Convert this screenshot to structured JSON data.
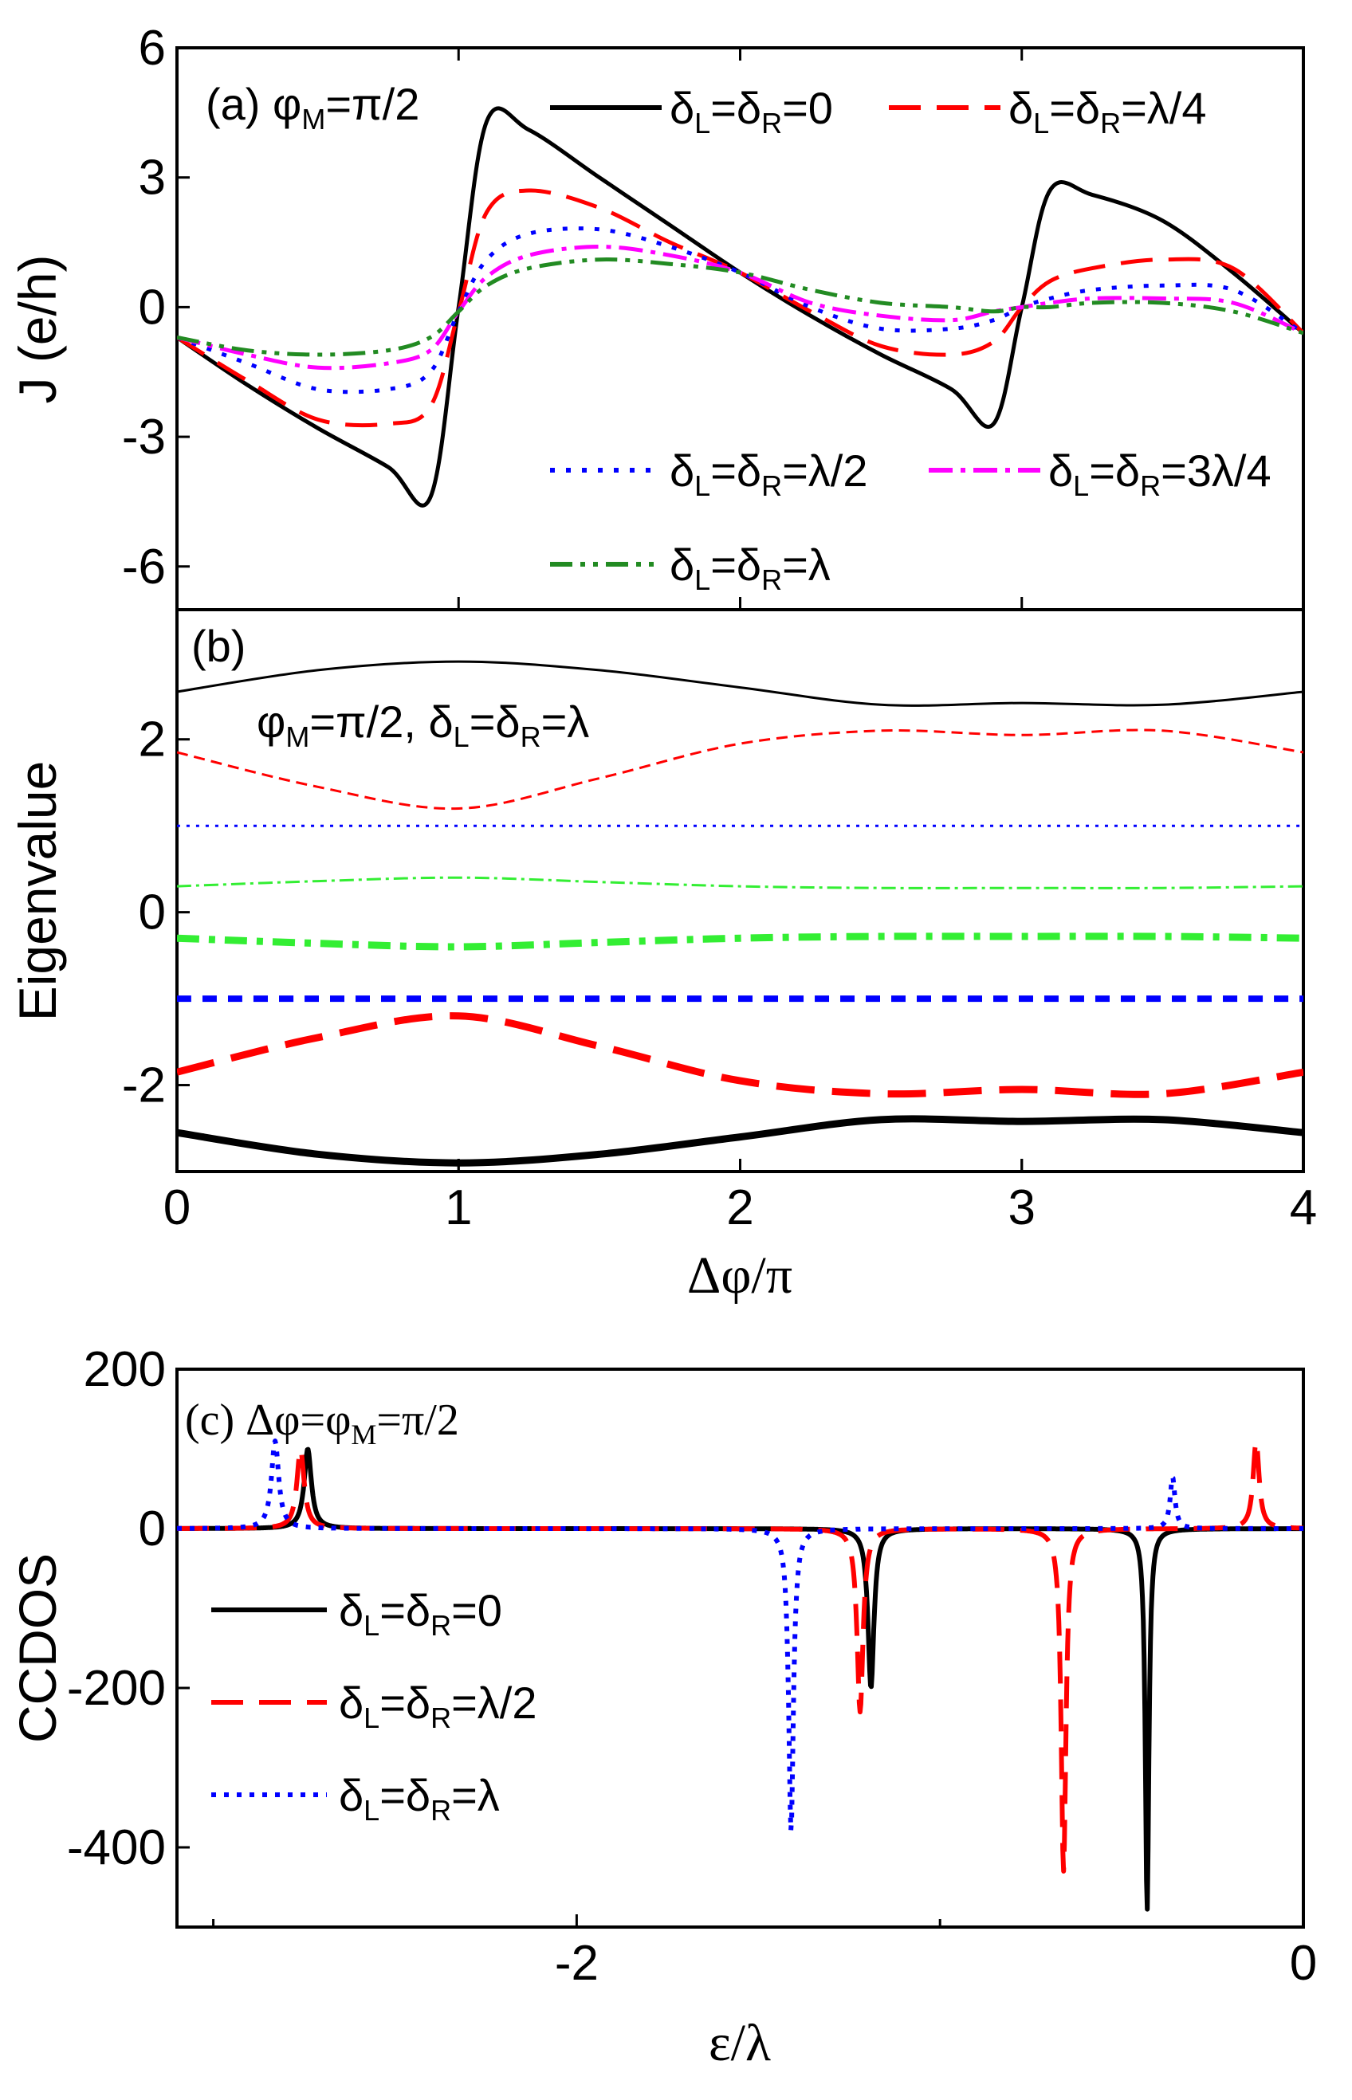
{
  "chart_data": [
    {
      "panel": "(a)",
      "type": "line",
      "annotation": "(a) φM=π/2",
      "xlabel": "",
      "ylabel": "J (e/h)",
      "xlim": [
        0,
        4
      ],
      "ylim": [
        -7,
        6
      ],
      "yticks": [
        "6",
        "3",
        "0",
        "-3",
        "-6"
      ],
      "ytick_values": [
        6,
        3,
        0,
        -3,
        -6
      ],
      "x": [
        0,
        0.25,
        0.5,
        0.75,
        0.9,
        1.0,
        1.1,
        1.25,
        1.5,
        1.75,
        2.0,
        2.25,
        2.5,
        2.75,
        2.9,
        3.0,
        3.1,
        3.25,
        3.5,
        3.75,
        4.0
      ],
      "series": [
        {
          "name": "δL=δR=0",
          "color": "#000000",
          "dash": "",
          "values": [
            -0.7,
            -1.8,
            -2.8,
            -3.7,
            -4.4,
            0.0,
            4.3,
            4.1,
            3.0,
            1.9,
            0.8,
            -0.2,
            -1.1,
            -1.9,
            -2.7,
            0.0,
            2.7,
            2.6,
            2.0,
            0.8,
            -0.6
          ]
        },
        {
          "name": "δL=δR=λ/4",
          "color": "#ff0000",
          "dash": "40,20",
          "values": [
            -0.7,
            -1.7,
            -2.6,
            -2.7,
            -2.3,
            -0.1,
            2.2,
            2.7,
            2.3,
            1.5,
            0.8,
            -0.1,
            -0.9,
            -1.1,
            -0.8,
            0.0,
            0.6,
            0.9,
            1.1,
            0.9,
            -0.6
          ]
        },
        {
          "name": "δL=δR=λ/2",
          "color": "#0000ff",
          "dash": "6,14",
          "values": [
            -0.7,
            -1.3,
            -1.9,
            -1.9,
            -1.5,
            -0.1,
            1.1,
            1.7,
            1.8,
            1.4,
            0.8,
            0.0,
            -0.5,
            -0.5,
            -0.3,
            0.0,
            0.2,
            0.4,
            0.5,
            0.4,
            -0.6
          ]
        },
        {
          "name": "δL=δR=3λ/4",
          "color": "#ff00ff",
          "dash": "30,10,6,10",
          "values": [
            -0.7,
            -1.1,
            -1.4,
            -1.3,
            -1.0,
            -0.1,
            0.7,
            1.2,
            1.4,
            1.2,
            0.8,
            0.1,
            -0.2,
            -0.3,
            -0.1,
            0.0,
            0.1,
            0.2,
            0.2,
            0.1,
            -0.6
          ]
        },
        {
          "name": "δL=δR=λ",
          "color": "#228b22",
          "dash": "28,10,6,10,6,10",
          "values": [
            -0.7,
            -1.0,
            -1.1,
            -1.0,
            -0.7,
            -0.1,
            0.5,
            0.9,
            1.1,
            1.0,
            0.8,
            0.4,
            0.1,
            0.0,
            -0.1,
            0.0,
            0.0,
            0.1,
            0.1,
            -0.1,
            -0.6
          ]
        }
      ],
      "legend": "top-right, bottom-right and bottom-center"
    },
    {
      "panel": "(b)",
      "type": "line",
      "annotation_label": "(b)",
      "annotation": "φM=π/2, δL=δR=λ",
      "xlabel": "Δφ/π",
      "ylabel": "Eigenvalue",
      "xlim": [
        0,
        4
      ],
      "ylim": [
        -3.0,
        3.5
      ],
      "xticks": [
        "0",
        "1",
        "2",
        "3",
        "4"
      ],
      "xtick_values": [
        0,
        1,
        2,
        3,
        4
      ],
      "yticks": [
        "2",
        "0",
        "-2"
      ],
      "ytick_values": [
        2,
        0,
        -2
      ],
      "x": [
        0,
        0.5,
        1.0,
        1.5,
        2.0,
        2.5,
        3.0,
        3.5,
        4.0
      ],
      "series": [
        {
          "color": "#000000",
          "dash": "",
          "width": 3,
          "values": [
            2.55,
            2.8,
            2.9,
            2.8,
            2.6,
            2.4,
            2.42,
            2.4,
            2.55
          ]
        },
        {
          "color": "#ff0000",
          "dash": "14,8",
          "width": 3,
          "values": [
            1.85,
            1.45,
            1.2,
            1.55,
            1.95,
            2.1,
            2.05,
            2.1,
            1.85
          ]
        },
        {
          "color": "#0000ff",
          "dash": "4,8",
          "width": 3,
          "values": [
            1.0,
            1.0,
            1.0,
            1.0,
            1.0,
            1.0,
            1.0,
            1.0,
            1.0
          ]
        },
        {
          "color": "#33ee33",
          "dash": "18,6,4,6",
          "width": 3,
          "values": [
            0.3,
            0.36,
            0.4,
            0.35,
            0.3,
            0.28,
            0.28,
            0.28,
            0.3
          ]
        },
        {
          "color": "#33ee33",
          "dash": "28,12,8,12",
          "width": 9,
          "values": [
            -0.3,
            -0.36,
            -0.4,
            -0.35,
            -0.3,
            -0.28,
            -0.28,
            -0.28,
            -0.3
          ]
        },
        {
          "color": "#0000ff",
          "dash": "18,14",
          "width": 8,
          "values": [
            -1.0,
            -1.0,
            -1.0,
            -1.0,
            -1.0,
            -1.0,
            -1.0,
            -1.0,
            -1.0
          ]
        },
        {
          "color": "#ff0000",
          "dash": "48,22",
          "width": 9,
          "values": [
            -1.85,
            -1.45,
            -1.2,
            -1.55,
            -1.95,
            -2.1,
            -2.05,
            -2.1,
            -1.85
          ]
        },
        {
          "color": "#000000",
          "dash": "",
          "width": 9,
          "values": [
            -2.55,
            -2.8,
            -2.9,
            -2.8,
            -2.6,
            -2.4,
            -2.42,
            -2.4,
            -2.55
          ]
        }
      ]
    },
    {
      "panel": "(c)",
      "type": "line",
      "annotation": "(c) Δφ=φM=π/2",
      "xlabel": "ε/λ",
      "ylabel": "CCDOS",
      "xlim": [
        -3.1,
        0
      ],
      "ylim": [
        -500,
        200
      ],
      "xticks": [
        "-2",
        "0"
      ],
      "xtick_values": [
        -2,
        0
      ],
      "yticks": [
        "200",
        "0",
        "-200",
        "-400"
      ],
      "ytick_values": [
        200,
        0,
        -200,
        -400
      ],
      "series": [
        {
          "name": "δL=δR=0",
          "color": "#000000",
          "dash": "",
          "width": 6,
          "peaks": [
            {
              "x": -2.74,
              "y": 100,
              "w": 0.012
            },
            {
              "x": -1.19,
              "y": -200,
              "w": 0.01
            },
            {
              "x": -0.43,
              "y": -480,
              "w": 0.006
            }
          ]
        },
        {
          "name": "δL=δR=λ/2",
          "color": "#ff0000",
          "dash": "40,20",
          "width": 6,
          "peaks": [
            {
              "x": -2.76,
              "y": 100,
              "w": 0.012
            },
            {
              "x": -1.22,
              "y": -230,
              "w": 0.01
            },
            {
              "x": -0.66,
              "y": -430,
              "w": 0.008
            },
            {
              "x": -0.13,
              "y": 110,
              "w": 0.01
            }
          ]
        },
        {
          "name": "δL=δR=λ",
          "color": "#0000ff",
          "dash": "6,10",
          "width": 6,
          "peaks": [
            {
              "x": -2.83,
              "y": 110,
              "w": 0.012
            },
            {
              "x": -1.41,
              "y": -380,
              "w": 0.008
            },
            {
              "x": -0.36,
              "y": 65,
              "w": 0.008
            }
          ]
        }
      ],
      "legend": "left-center"
    }
  ]
}
